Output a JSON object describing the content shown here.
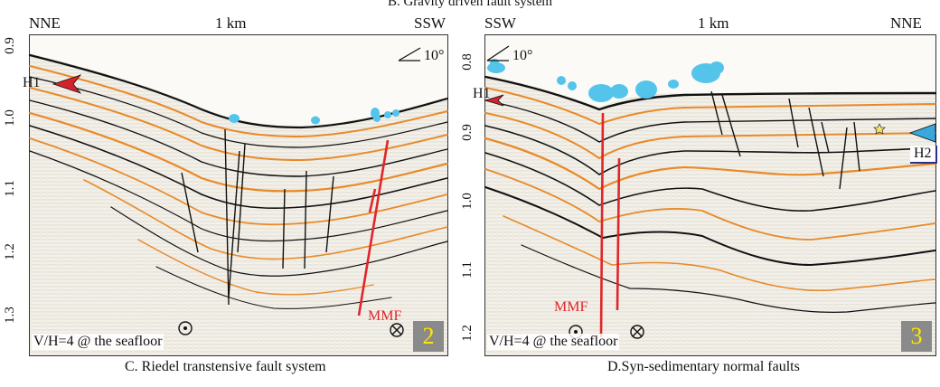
{
  "header": {
    "title": "B. Gravity driven fault system"
  },
  "panel_left": {
    "dir_left": "NNE",
    "dir_right": "SSW",
    "scale": "1 km",
    "angle": "10°",
    "yticks": [
      "0.9",
      "1.0",
      "1.1",
      "1.2",
      "1.3"
    ],
    "horizon": "H1",
    "fault_label": "MMF",
    "vh": "V/H=4 @ the seafloor",
    "number": "2",
    "caption": "C. Riedel transtensive fault system"
  },
  "panel_right": {
    "dir_left": "SSW",
    "dir_right": "NNE",
    "scale": "1 km",
    "angle": "10°",
    "yticks": [
      "0.8",
      "0.9",
      "1.0",
      "1.1",
      "1.2"
    ],
    "horizon1": "H1",
    "horizon2": "H2",
    "fault_label": "MMF",
    "vh": "V/H=4 @ the seafloor",
    "number": "3",
    "caption": "D.Syn-sedimentary normal faults"
  },
  "colors": {
    "reflector_orange": "#e88a2a",
    "reflector_black": "#111111",
    "fault_red": "#e0262a",
    "bubbles_cyan": "#55c4ea",
    "h1_arrow": "#d4232a",
    "h2_arrow": "#3aa7dd",
    "numbox_bg": "#8a8a8a",
    "numbox_text": "#ffe600"
  }
}
